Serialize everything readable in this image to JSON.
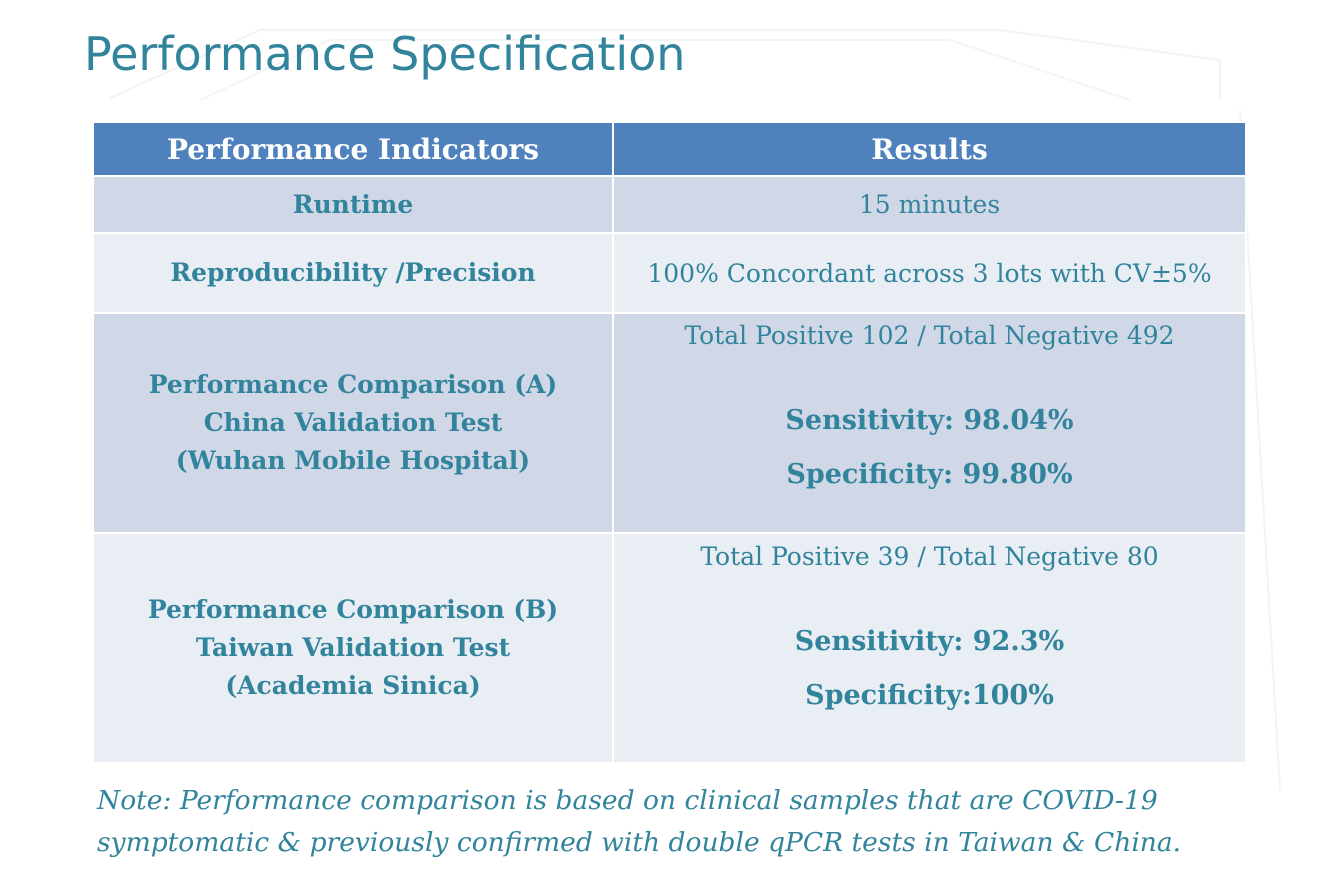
{
  "page": {
    "title": "Performance Specification"
  },
  "colors": {
    "title": "#31849b",
    "text": "#31849b",
    "header_bg": "#4f81bd",
    "row_dark_bg": "#d0d8e8",
    "row_light_bg": "#e9edf4"
  },
  "table": {
    "headers": [
      "Performance Indicators",
      "Results"
    ],
    "runtime": {
      "indicator": "Runtime",
      "result": "15 minutes"
    },
    "reproducibility": {
      "indicator": "Reproducibility /Precision",
      "result": "100% Concordant across 3 lots with CV±5%"
    },
    "comparison_a": {
      "indicator_lines": [
        "Performance Comparison (A)",
        "China Validation Test",
        "(Wuhan Mobile Hospital)"
      ],
      "totals": "Total Positive 102 / Total Negative 492",
      "sensitivity": "Sensitivity: 98.04%",
      "specificity": "Specificity: 99.80%"
    },
    "comparison_b": {
      "indicator_lines": [
        "Performance Comparison (B)",
        "Taiwan Validation Test",
        "(Academia Sinica)"
      ],
      "totals": "Total Positive 39 / Total Negative 80",
      "sensitivity": "Sensitivity: 92.3%",
      "specificity": "Specificity:100%"
    }
  },
  "note": {
    "lines": [
      "Note: Performance comparison is based on clinical samples that are COVID-19",
      "symptomatic & previously confirmed with double qPCR tests in Taiwan & China."
    ]
  }
}
